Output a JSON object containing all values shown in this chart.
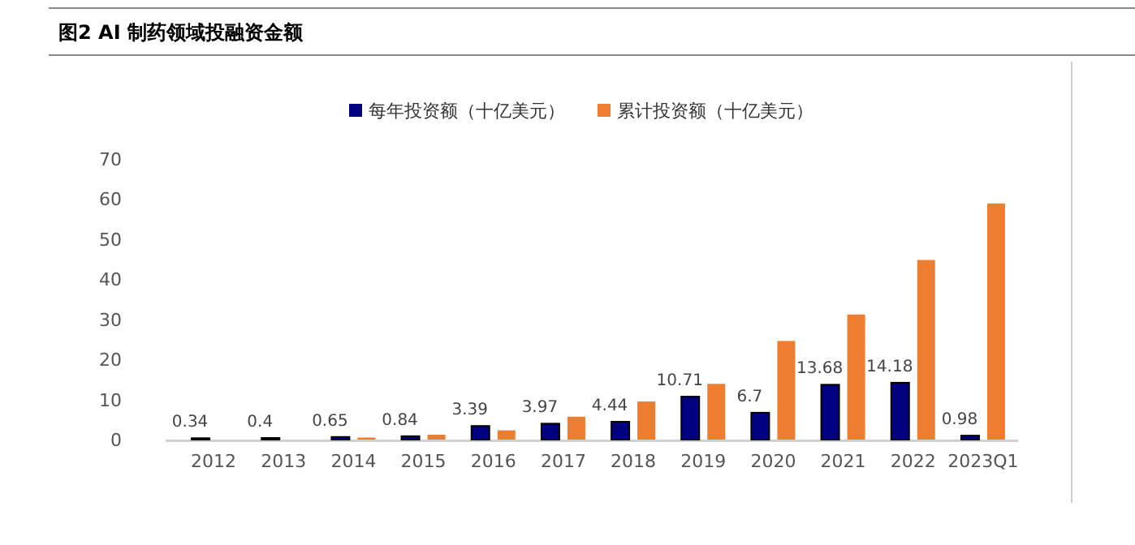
{
  "chart_data": {
    "type": "bar",
    "title": "图2  AI 制药领域投融资金额",
    "categories": [
      "2012",
      "2013",
      "2014",
      "2015",
      "2016",
      "2017",
      "2018",
      "2019",
      "2020",
      "2021",
      "2022",
      "2023Q1"
    ],
    "series": [
      {
        "name": "每年投资额（十亿美元）",
        "color": "#000080",
        "values": [
          0.34,
          0.4,
          0.65,
          0.84,
          3.39,
          3.97,
          4.44,
          10.71,
          6.7,
          13.68,
          14.18,
          0.98
        ],
        "value_labels": [
          "0.34",
          "0.4",
          "0.65",
          "0.84",
          "3.39",
          "3.97",
          "4.44",
          "10.71",
          "6.7",
          "13.68",
          "14.18",
          "0.98"
        ]
      },
      {
        "name": "累计投资额（十亿美元）",
        "color": "#ed7d31",
        "values": [
          0,
          0,
          0.5,
          1.2,
          2.3,
          5.7,
          9.5,
          13.9,
          24.6,
          31.2,
          44.8,
          58.9
        ]
      }
    ],
    "ylim": [
      0,
      70
    ],
    "yticks": [
      0,
      10,
      20,
      30,
      40,
      50,
      60,
      70
    ],
    "legend": "top"
  }
}
